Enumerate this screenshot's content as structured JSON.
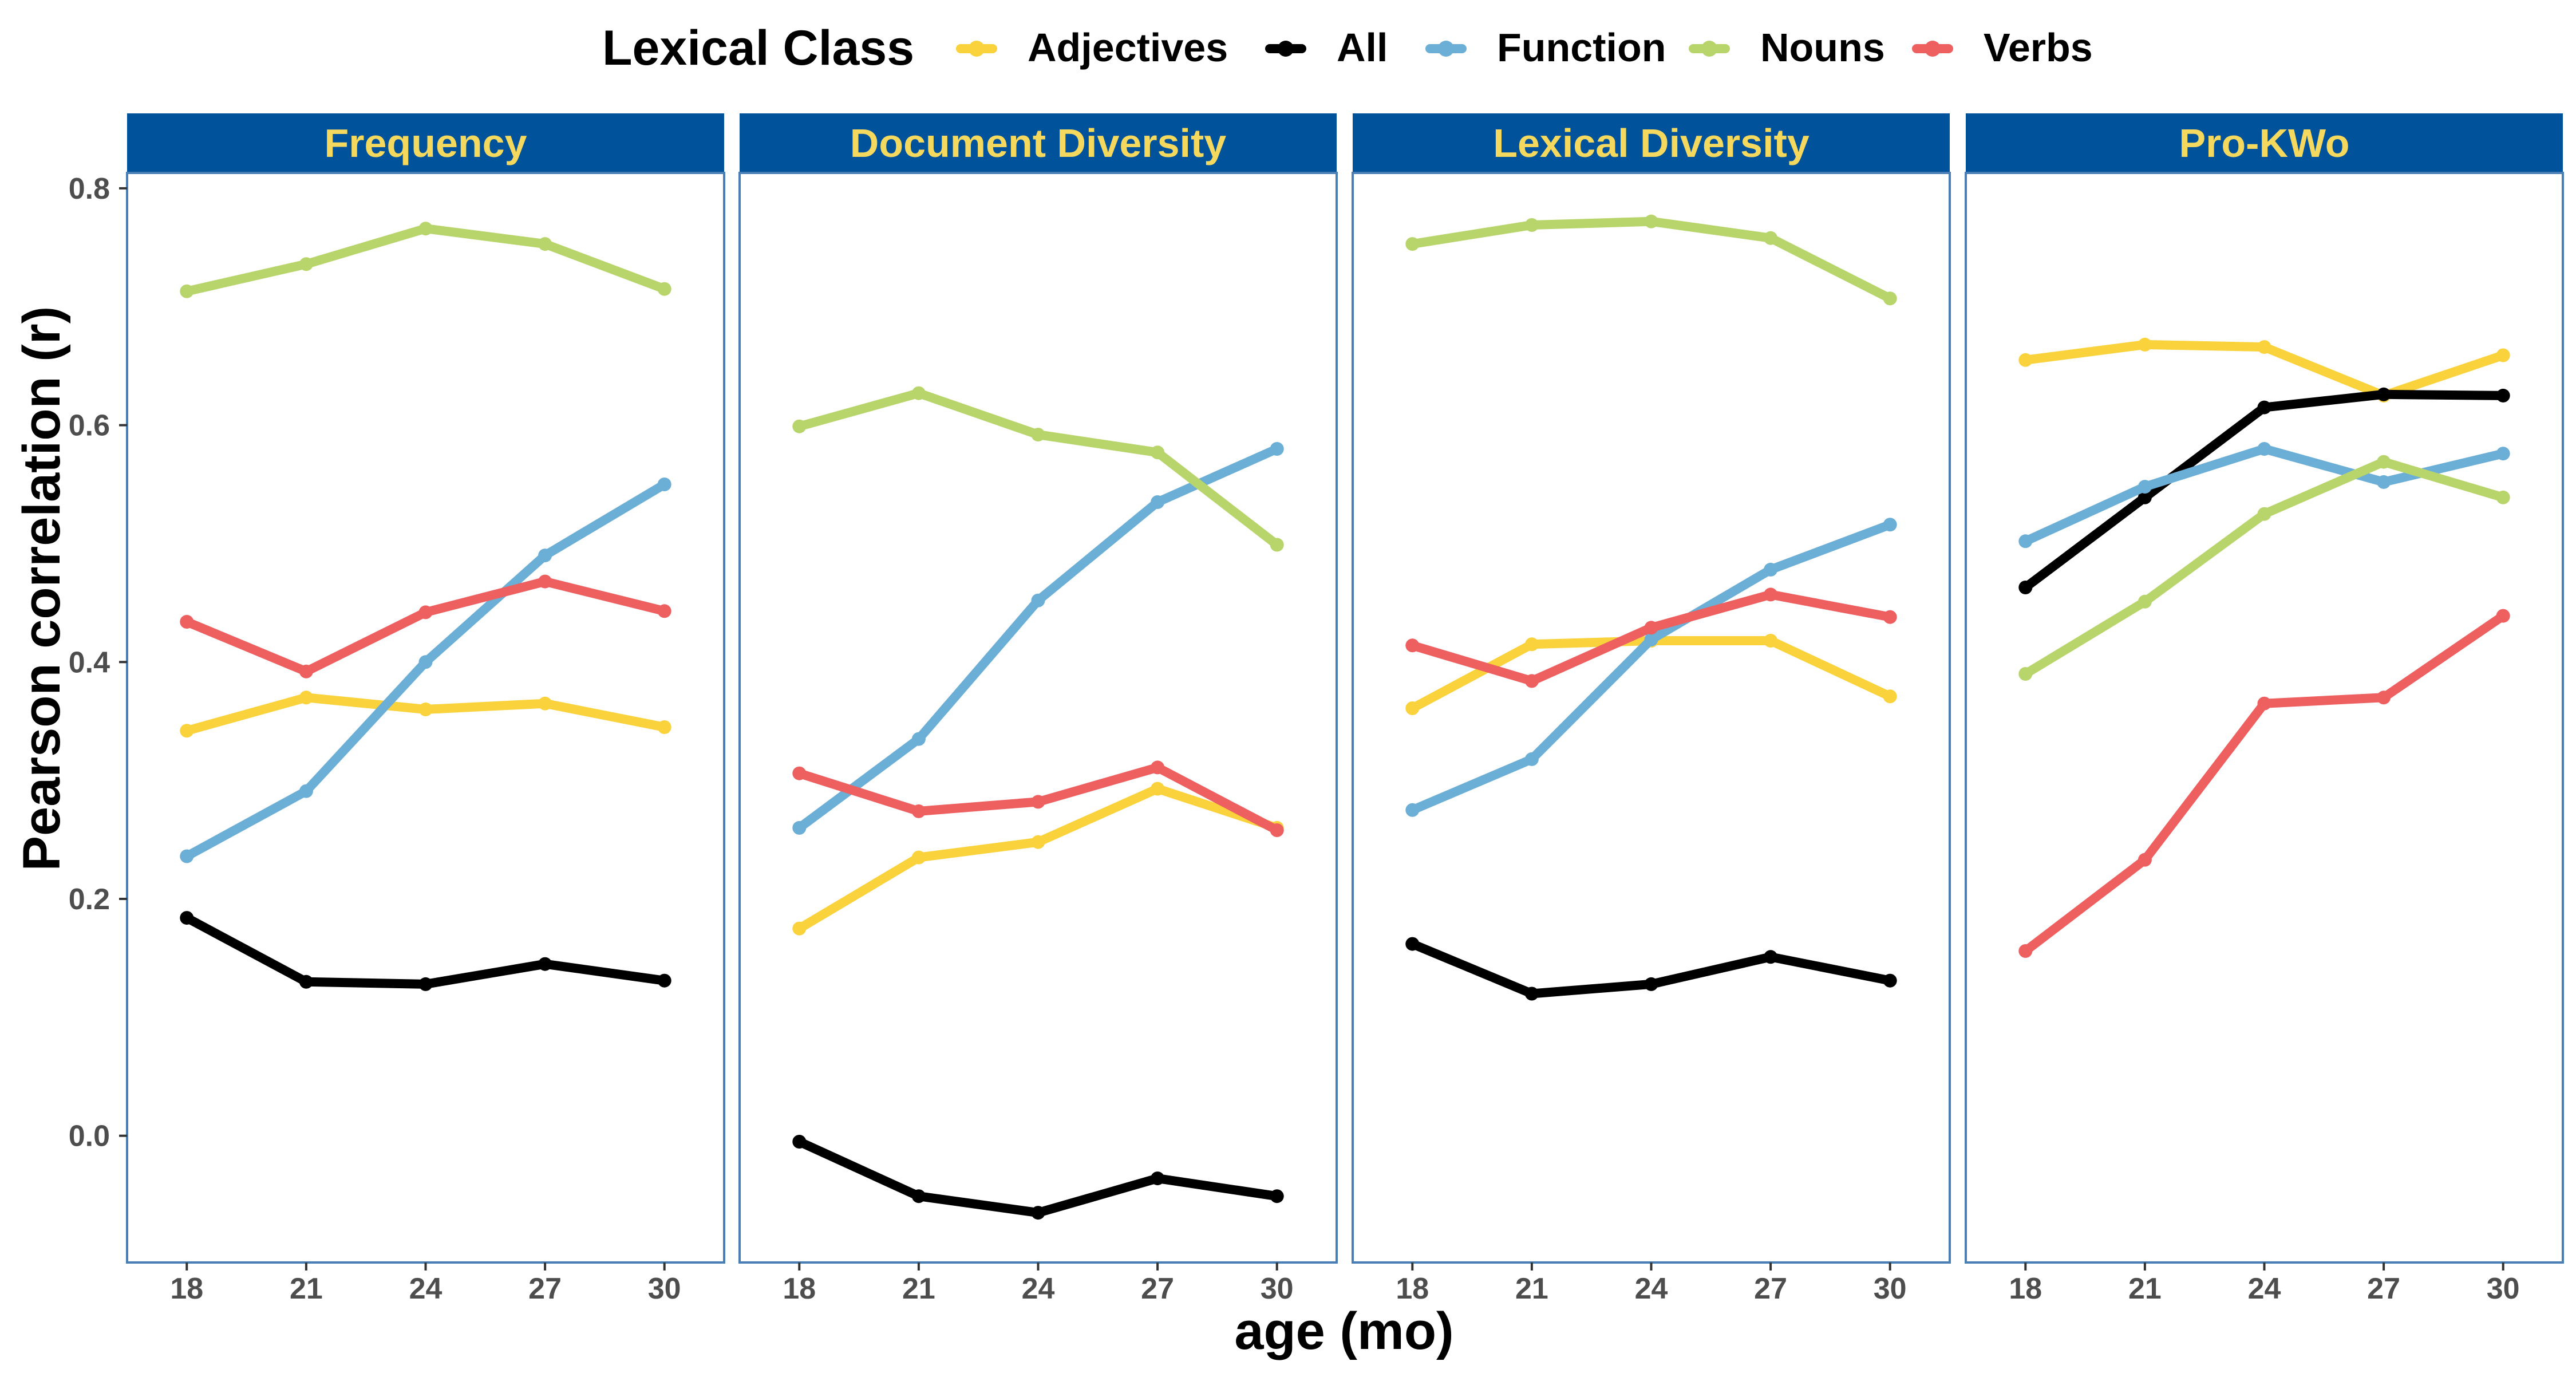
{
  "chart_data": {
    "type": "line",
    "xlabel": "age (mo)",
    "ylabel": "Pearson correlation (r)",
    "ylim": [
      -0.107,
      0.813
    ],
    "xlim": [
      16.5,
      31.5
    ],
    "x": [
      18,
      21,
      24,
      27,
      30
    ],
    "x_ticks": [
      "18",
      "21",
      "24",
      "27",
      "30"
    ],
    "y_ticks": [
      "0.0",
      "0.2",
      "0.4",
      "0.6",
      "0.8"
    ],
    "y_tick_values": [
      0.0,
      0.2,
      0.4,
      0.6,
      0.8
    ],
    "legend": {
      "title": "Lexical Class",
      "placement": "top",
      "entries": [
        "Adjectives",
        "All",
        "Function",
        "Nouns",
        "Verbs"
      ]
    },
    "colors": {
      "Adjectives": "#F9D23C",
      "All": "#000000",
      "Function": "#6BAED6",
      "Nouns": "#B8D56B",
      "Verbs": "#EE5F60",
      "strip_fill": "#00529B",
      "strip_text": "#F4D95E",
      "panel_border": "#4A7FB5"
    },
    "panels": [
      {
        "title": "Frequency",
        "series": [
          {
            "name": "Adjectives",
            "values": [
              0.342,
              0.37,
              0.36,
              0.365,
              0.345
            ]
          },
          {
            "name": "All",
            "values": [
              0.184,
              0.13,
              0.128,
              0.145,
              0.131
            ]
          },
          {
            "name": "Function",
            "values": [
              0.236,
              0.291,
              0.4,
              0.49,
              0.55
            ]
          },
          {
            "name": "Nouns",
            "values": [
              0.713,
              0.736,
              0.766,
              0.753,
              0.715
            ]
          },
          {
            "name": "Verbs",
            "values": [
              0.434,
              0.392,
              0.442,
              0.468,
              0.443
            ]
          }
        ]
      },
      {
        "title": "Document Diversity",
        "series": [
          {
            "name": "Adjectives",
            "values": [
              0.175,
              0.235,
              0.248,
              0.293,
              0.26
            ]
          },
          {
            "name": "All",
            "values": [
              -0.005,
              -0.051,
              -0.065,
              -0.036,
              -0.051
            ]
          },
          {
            "name": "Function",
            "values": [
              0.26,
              0.335,
              0.452,
              0.535,
              0.58
            ]
          },
          {
            "name": "Nouns",
            "values": [
              0.599,
              0.627,
              0.592,
              0.577,
              0.499
            ]
          },
          {
            "name": "Verbs",
            "values": [
              0.306,
              0.274,
              0.282,
              0.311,
              0.258
            ]
          }
        ]
      },
      {
        "title": "Lexical Diversity",
        "series": [
          {
            "name": "Adjectives",
            "values": [
              0.361,
              0.415,
              0.418,
              0.418,
              0.371
            ]
          },
          {
            "name": "All",
            "values": [
              0.162,
              0.12,
              0.128,
              0.151,
              0.131
            ]
          },
          {
            "name": "Function",
            "values": [
              0.275,
              0.318,
              0.419,
              0.478,
              0.516
            ]
          },
          {
            "name": "Nouns",
            "values": [
              0.753,
              0.769,
              0.772,
              0.758,
              0.707
            ]
          },
          {
            "name": "Verbs",
            "values": [
              0.414,
              0.384,
              0.429,
              0.457,
              0.438
            ]
          }
        ]
      },
      {
        "title": "Pro-KWo",
        "series": [
          {
            "name": "Adjectives",
            "values": [
              0.655,
              0.668,
              0.666,
              0.625,
              0.659
            ]
          },
          {
            "name": "All",
            "values": [
              0.463,
              0.539,
              0.615,
              0.626,
              0.625
            ]
          },
          {
            "name": "Function",
            "values": [
              0.502,
              0.548,
              0.58,
              0.552,
              0.576
            ]
          },
          {
            "name": "Nouns",
            "values": [
              0.39,
              0.451,
              0.525,
              0.569,
              0.539
            ]
          },
          {
            "name": "Verbs",
            "values": [
              0.156,
              0.233,
              0.365,
              0.37,
              0.439
            ]
          }
        ]
      }
    ]
  }
}
